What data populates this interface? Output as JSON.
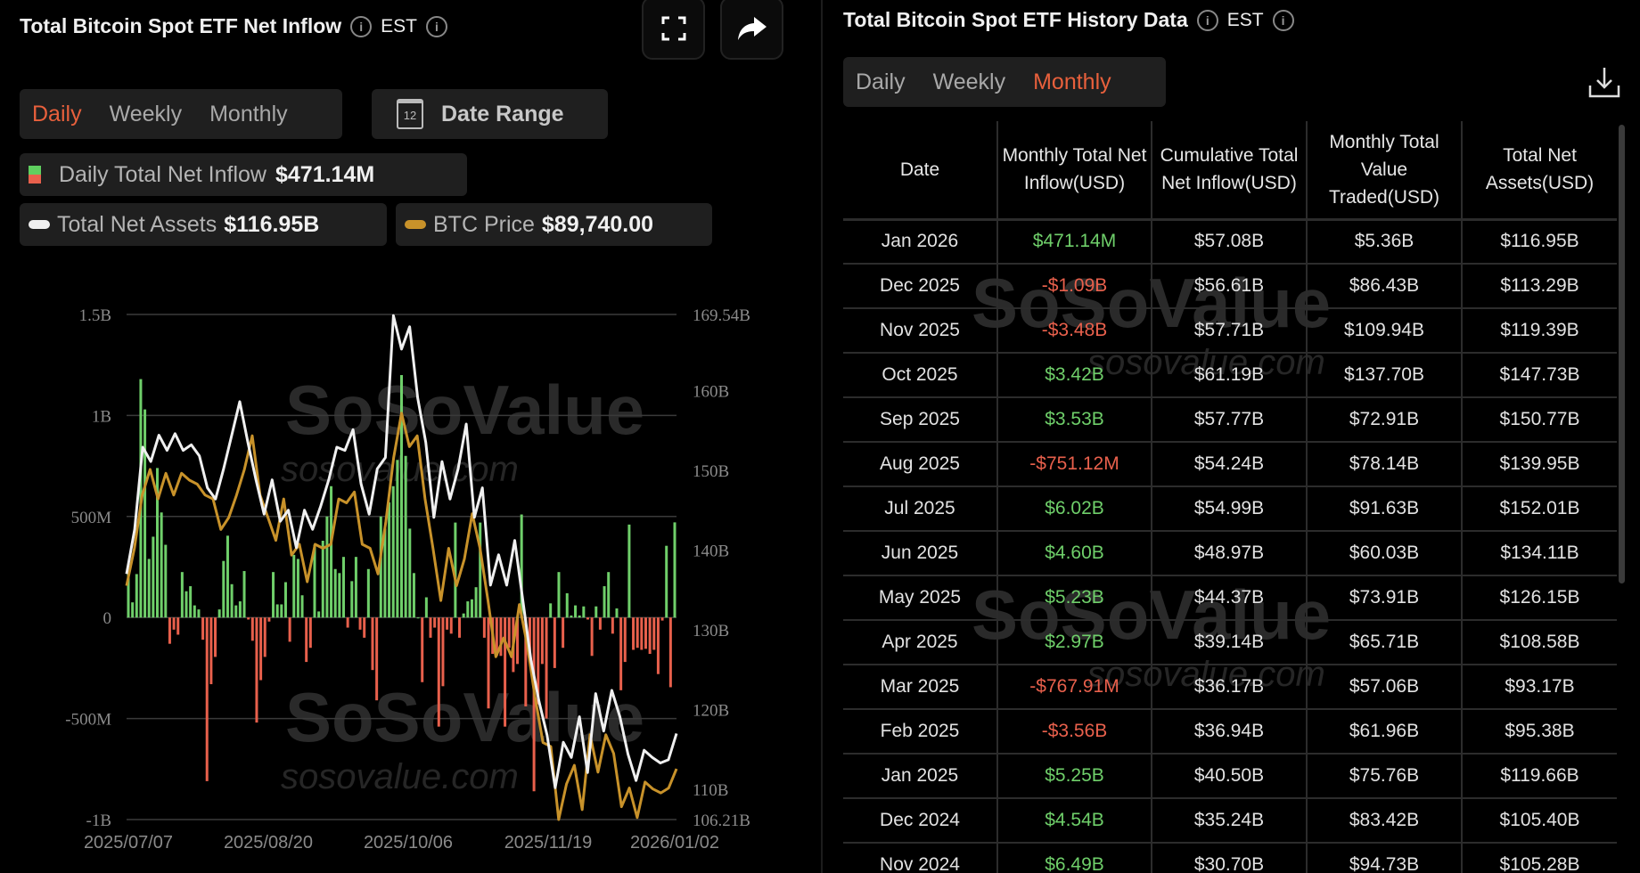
{
  "left": {
    "title": "Total Bitcoin Spot ETF Net Inflow",
    "timezone": "EST",
    "tabs": [
      "Daily",
      "Weekly",
      "Monthly"
    ],
    "active_tab": "Daily",
    "date_range_label": "Date Range",
    "calendar_day": "12",
    "legend": {
      "inflow_label": "Daily Total Net Inflow",
      "inflow_value": "$471.14M",
      "assets_label": "Total Net Assets",
      "assets_value": "$116.95B",
      "btc_label": "BTC Price",
      "btc_value": "$89,740.00"
    },
    "watermark": "SoSoValue",
    "watermark_url": "sosovalue.com"
  },
  "right": {
    "title": "Total Bitcoin Spot ETF History Data",
    "timezone": "EST",
    "tabs": [
      "Daily",
      "Weekly",
      "Monthly"
    ],
    "active_tab": "Monthly",
    "columns": [
      "Date",
      "Monthly Total Net Inflow(USD)",
      "Cumulative Total Net Inflow(USD)",
      "Monthly Total Value Traded(USD)",
      "Total Net Assets(USD)"
    ],
    "rows": [
      [
        "Jan 2026",
        "$471.14M",
        "$57.08B",
        "$5.36B",
        "$116.95B"
      ],
      [
        "Dec 2025",
        "-$1.09B",
        "$56.61B",
        "$86.43B",
        "$113.29B"
      ],
      [
        "Nov 2025",
        "-$3.48B",
        "$57.71B",
        "$109.94B",
        "$119.39B"
      ],
      [
        "Oct 2025",
        "$3.42B",
        "$61.19B",
        "$137.70B",
        "$147.73B"
      ],
      [
        "Sep 2025",
        "$3.53B",
        "$57.77B",
        "$72.91B",
        "$150.77B"
      ],
      [
        "Aug 2025",
        "-$751.12M",
        "$54.24B",
        "$78.14B",
        "$139.95B"
      ],
      [
        "Jul 2025",
        "$6.02B",
        "$54.99B",
        "$91.63B",
        "$152.01B"
      ],
      [
        "Jun 2025",
        "$4.60B",
        "$48.97B",
        "$60.03B",
        "$134.11B"
      ],
      [
        "May 2025",
        "$5.23B",
        "$44.37B",
        "$73.91B",
        "$126.15B"
      ],
      [
        "Apr 2025",
        "$2.97B",
        "$39.14B",
        "$65.71B",
        "$108.58B"
      ],
      [
        "Mar 2025",
        "-$767.91M",
        "$36.17B",
        "$57.06B",
        "$93.17B"
      ],
      [
        "Feb 2025",
        "-$3.56B",
        "$36.94B",
        "$61.96B",
        "$95.38B"
      ],
      [
        "Jan 2025",
        "$5.25B",
        "$40.50B",
        "$75.76B",
        "$119.66B"
      ],
      [
        "Dec 2024",
        "$4.54B",
        "$35.24B",
        "$83.42B",
        "$105.40B"
      ],
      [
        "Nov 2024",
        "$6.49B",
        "$30.70B",
        "$94.73B",
        "$105.28B"
      ]
    ],
    "watermark": "SoSoValue",
    "watermark_url": "sosovalue.com"
  },
  "colors": {
    "accent": "#e8603c",
    "positive": "#6fcf6a",
    "negative": "#e8604c",
    "assets_line": "#f0f0f0",
    "btc_line": "#c8922a"
  },
  "chart_data": {
    "type": "bar+line",
    "xticks": [
      "2025/07/07",
      "2025/08/20",
      "2025/10/06",
      "2025/11/19",
      "2026/01/02"
    ],
    "left_axis": {
      "ticks": [
        "1.5B",
        "1B",
        "500M",
        "0",
        "-500M",
        "-1B"
      ],
      "tick_values": [
        1500,
        1000,
        500,
        0,
        -500,
        -1000
      ],
      "range": [
        -1000,
        1500
      ],
      "unit": "USD millions"
    },
    "right_axis": {
      "ticks": [
        "169.54B",
        "160B",
        "150B",
        "140B",
        "130B",
        "120B",
        "110B",
        "106.21B"
      ],
      "tick_values": [
        169.54,
        160,
        150,
        140,
        130,
        120,
        110,
        106.21
      ],
      "range": [
        106.21,
        169.54
      ],
      "unit": "USD billions"
    },
    "btc_axis_range": [
      84600,
      135800
    ],
    "series": [
      {
        "name": "Daily Total Net Inflow",
        "type": "bar",
        "unit": "USD millions",
        "values": [
          215,
          75,
          215,
          1180,
          1030,
          290,
          400,
          740,
          520,
          360,
          -130,
          -60,
          -85,
          225,
          130,
          155,
          60,
          40,
          -110,
          -810,
          -330,
          -195,
          40,
          280,
          405,
          165,
          60,
          80,
          230,
          -10,
          -115,
          -520,
          -310,
          -195,
          -20,
          225,
          65,
          65,
          175,
          -120,
          310,
          290,
          110,
          -220,
          -150,
          360,
          30,
          380,
          500,
          650,
          240,
          220,
          300,
          -50,
          180,
          300,
          -60,
          -100,
          240,
          -260,
          -410,
          500,
          440,
          570,
          650,
          780,
          1200,
          800,
          440,
          220,
          0,
          -320,
          100,
          -100,
          -50,
          -540,
          -340,
          -60,
          -80,
          470,
          -100,
          20,
          80,
          90,
          150,
          470,
          -100,
          -450,
          -180,
          -190,
          -190,
          -540,
          -150,
          -270,
          -230,
          510,
          -440,
          -220,
          -860,
          -430,
          -230,
          -500,
          70,
          -250,
          225,
          -150,
          120,
          10,
          60,
          10,
          55,
          -10,
          -190,
          55,
          -60,
          155,
          225,
          -80,
          45,
          -360,
          -220,
          460,
          -160,
          -150,
          -160,
          -155,
          -180,
          -160,
          -280,
          -15,
          355,
          -345,
          471
        ]
      },
      {
        "name": "Total Net Assets",
        "type": "line",
        "unit": "USD billions",
        "values": [
          137.0,
          142.6,
          152.9,
          151.1,
          154.4,
          152.5,
          154.6,
          152.5,
          153.2,
          151.8,
          147.8,
          146.4,
          150.2,
          154.4,
          158.6,
          153.5,
          148.8,
          144.5,
          148.8,
          143.6,
          145.0,
          140.3,
          145.0,
          142.6,
          145.5,
          148.8,
          152.9,
          152.5,
          155.1,
          148.3,
          144.5,
          150.2,
          151.6,
          169.4,
          165.2,
          168.0,
          159.1,
          153.5,
          144.1,
          151.1,
          146.4,
          150.2,
          155.8,
          144.1,
          147.8,
          135.6,
          139.4,
          135.6,
          141.2,
          133.7,
          126.2,
          121.0,
          116.8,
          110.2,
          115.9,
          114.0,
          119.1,
          112.1,
          122.0,
          117.3,
          122.4,
          119.1,
          114.4,
          111.1,
          114.9,
          114.0,
          113.3,
          113.7,
          117.0
        ]
      },
      {
        "name": "BTC Price",
        "type": "line",
        "unit": "USD",
        "values": [
          108300,
          112100,
          117500,
          120100,
          117100,
          119700,
          117500,
          119700,
          119000,
          118600,
          117500,
          117100,
          114000,
          115200,
          117500,
          120100,
          123500,
          117500,
          115200,
          112900,
          117100,
          111400,
          112500,
          108700,
          112500,
          112100,
          112500,
          117100,
          116700,
          117800,
          112500,
          112100,
          109500,
          114800,
          121300,
          125800,
          122400,
          123500,
          117100,
          112100,
          106800,
          112100,
          108300,
          111000,
          115600,
          112100,
          106800,
          101100,
          103000,
          101100,
          106400,
          102300,
          97000,
          92400,
          92000,
          84600,
          88200,
          90100,
          85600,
          93200,
          89400,
          93200,
          91300,
          85900,
          87800,
          84800,
          88400,
          87700,
          87300,
          87800,
          89740
        ]
      }
    ]
  }
}
